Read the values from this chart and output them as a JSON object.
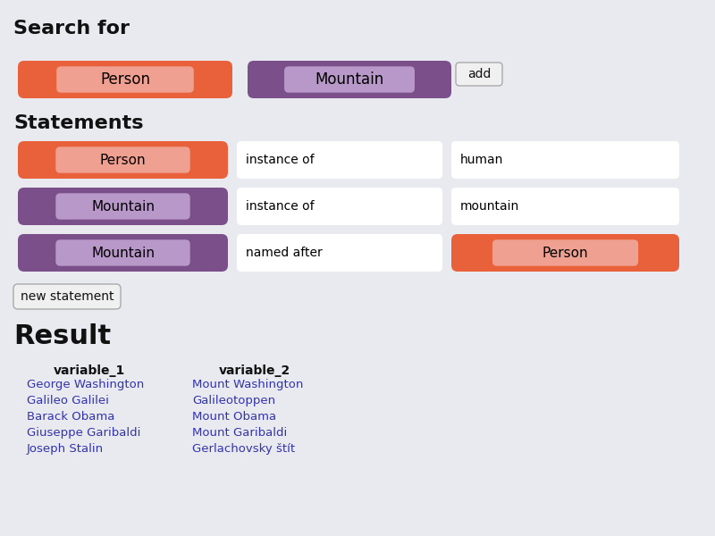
{
  "bg_color": "#e8eaf0",
  "title_search": "Search for",
  "title_statements": "Statements",
  "title_result": "Result",
  "person_block": {
    "label": "Person",
    "outer_color": "#e8613a",
    "inner_color": "#f0a090",
    "text_color": "#000000"
  },
  "mountain_block": {
    "label": "Mountain",
    "outer_color": "#7a4f8a",
    "inner_color": "#b898c8",
    "text_color": "#000000"
  },
  "add_button": "add",
  "statements": [
    {
      "subject_label": "Person",
      "subject_outer": "#e8613a",
      "subject_inner": "#f0a090",
      "predicate": "instance of",
      "object_label": "human",
      "object_is_block": false,
      "object_outer": null,
      "object_inner": null
    },
    {
      "subject_label": "Mountain",
      "subject_outer": "#7a4f8a",
      "subject_inner": "#b898c8",
      "predicate": "instance of",
      "object_label": "mountain",
      "object_is_block": false,
      "object_outer": null,
      "object_inner": null
    },
    {
      "subject_label": "Mountain",
      "subject_outer": "#7a4f8a",
      "subject_inner": "#b898c8",
      "predicate": "named after",
      "object_label": "Person",
      "object_is_block": true,
      "object_outer": "#e8613a",
      "object_inner": "#f0a090"
    }
  ],
  "new_statement_btn": "new statement",
  "result_col1_header": "variable_1",
  "result_col2_header": "variable_2",
  "result_col1": [
    "George Washington",
    "Galileo Galilei",
    "Barack Obama",
    "Giuseppe Garibaldi",
    "Joseph Stalin"
  ],
  "result_col2": [
    "Mount Washington",
    "Galileotoppen",
    "Mount Obama",
    "Mount Garibaldi",
    "Gerlachovsky štít"
  ],
  "link_color": "#3333aa"
}
